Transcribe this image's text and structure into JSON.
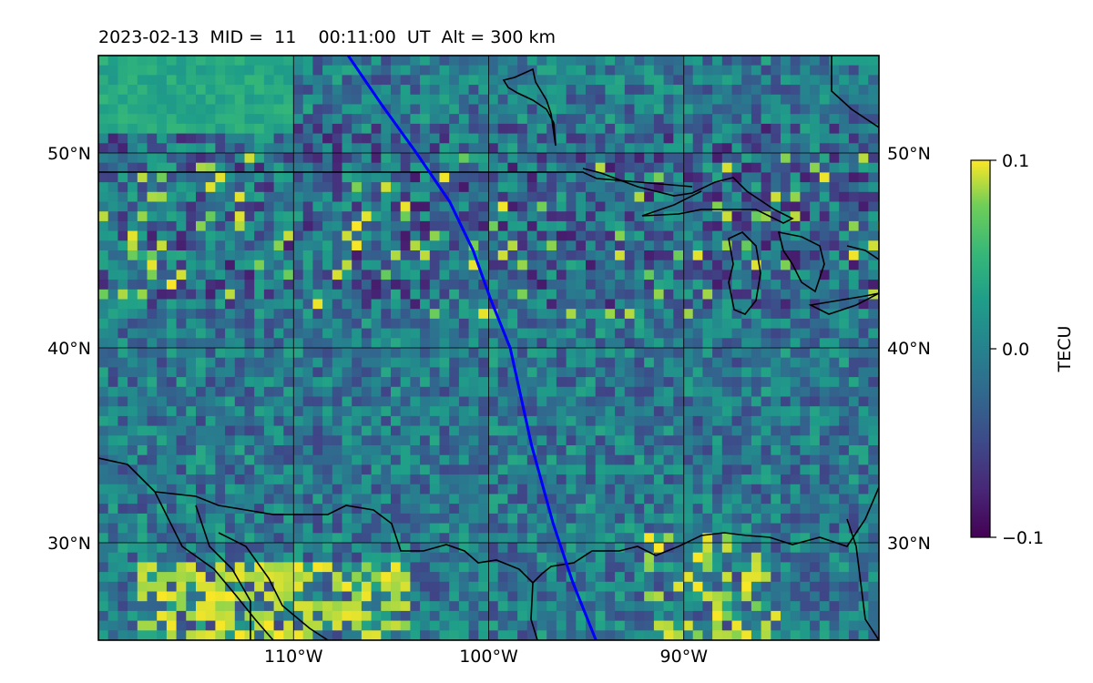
{
  "title": "2023-02-13  MID =  11    00:11:00  UT  Alt = 300 km",
  "map": {
    "lon_range": [
      -120,
      -80
    ],
    "lat_range": [
      25,
      55
    ],
    "lon_ticks": [
      {
        "value": -110,
        "label": "110°W"
      },
      {
        "value": -100,
        "label": "100°W"
      },
      {
        "value": -90,
        "label": "90°W"
      }
    ],
    "lat_ticks": [
      {
        "value": 50,
        "label": "50°N"
      },
      {
        "value": 40,
        "label": "40°N"
      },
      {
        "value": 30,
        "label": "30°N"
      }
    ],
    "gridlines": true,
    "track_color": "#0000ff",
    "coastline_color": "#000000",
    "colormap": "viridis"
  },
  "colorbar": {
    "label": "TECU",
    "min": -0.1,
    "max": 0.1,
    "ticks": [
      {
        "value": 0.1,
        "label": "0.1"
      },
      {
        "value": 0.0,
        "label": "0.0"
      },
      {
        "value": -0.1,
        "label": "−0.1"
      }
    ]
  },
  "chart_data": {
    "type": "heatmap",
    "title": "2023-02-13  MID =  11    00:11:00  UT  Alt = 300 km",
    "xlabel": "",
    "ylabel": "",
    "xlim": [
      -120,
      -80
    ],
    "ylim": [
      25,
      55
    ],
    "colorbar_range": [
      -0.1,
      0.1
    ],
    "colorbar_label": "TECU",
    "satellite_track": {
      "lon": [
        -107.2,
        -105.5,
        -103.7,
        -102.0,
        -100.8,
        -99.9,
        -98.9,
        -97.8,
        -96.7,
        -95.7,
        -94.5
      ],
      "lat": [
        55,
        52.5,
        50,
        47.5,
        45,
        42.5,
        40,
        35,
        31,
        28,
        25
      ]
    }
  }
}
